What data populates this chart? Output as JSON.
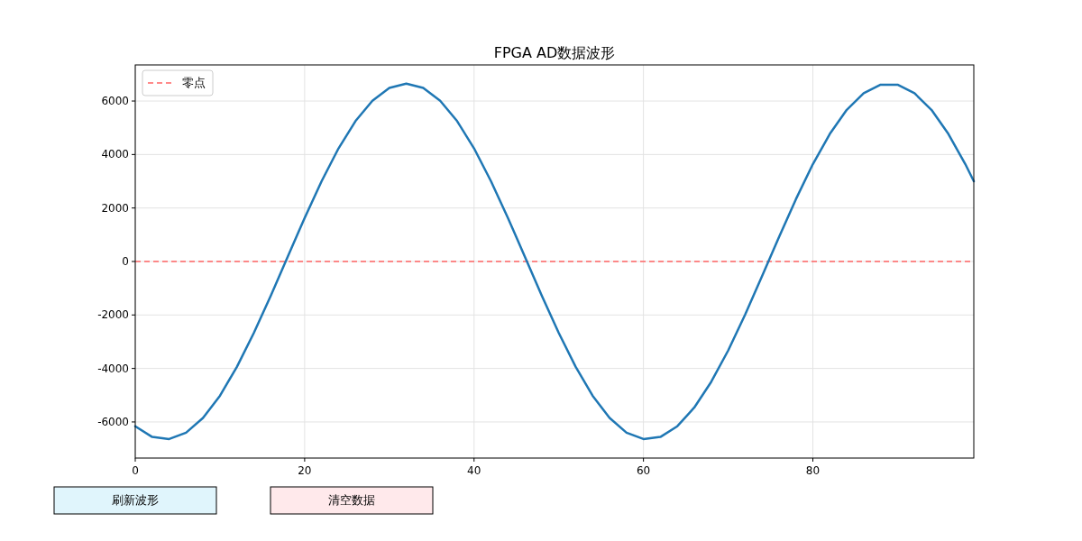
{
  "chart_data": {
    "type": "line",
    "title": "FPGA AD数据波形",
    "x": [
      0,
      2,
      4,
      6,
      8,
      10,
      12,
      14,
      16,
      18,
      20,
      22,
      24,
      26,
      28,
      30,
      32,
      34,
      36,
      38,
      40,
      42,
      44,
      46,
      48,
      50,
      52,
      54,
      56,
      58,
      60,
      62,
      64,
      66,
      68,
      70,
      72,
      74,
      76,
      78,
      80,
      82,
      84,
      86,
      88,
      90,
      92,
      94,
      96,
      98,
      99
    ],
    "series": [
      {
        "color": "#1f77b4",
        "values": [
          -6160,
          -6560,
          -6640,
          -6400,
          -5850,
          -5020,
          -3940,
          -2670,
          -1280,
          180,
          1630,
          3000,
          4230,
          5250,
          6010,
          6490,
          6650,
          6490,
          6010,
          5250,
          4230,
          3000,
          1630,
          180,
          -1280,
          -2670,
          -3940,
          -5020,
          -5850,
          -6400,
          -6640,
          -6560,
          -6160,
          -5460,
          -4500,
          -3330,
          -1990,
          -550,
          910,
          2330,
          3640,
          4770,
          5670,
          6290,
          6610,
          6610,
          6290,
          5670,
          4770,
          3640,
          3000
        ]
      }
    ],
    "xlim": [
      0,
      99
    ],
    "xticks": [
      0,
      20,
      40,
      60,
      80
    ],
    "ylim": [
      -7350,
      7350
    ],
    "yticks": [
      -6000,
      -4000,
      -2000,
      0,
      2000,
      4000,
      6000
    ],
    "grid": true,
    "legend": "top left",
    "line_style": "solid",
    "marker": "none",
    "ref_lines": [
      {
        "axis": "y",
        "value": 0,
        "label": "零点",
        "color": "#ff6666",
        "line_style": "dashed"
      }
    ],
    "annotations": [
      "刷新波形",
      "清空数据"
    ]
  }
}
